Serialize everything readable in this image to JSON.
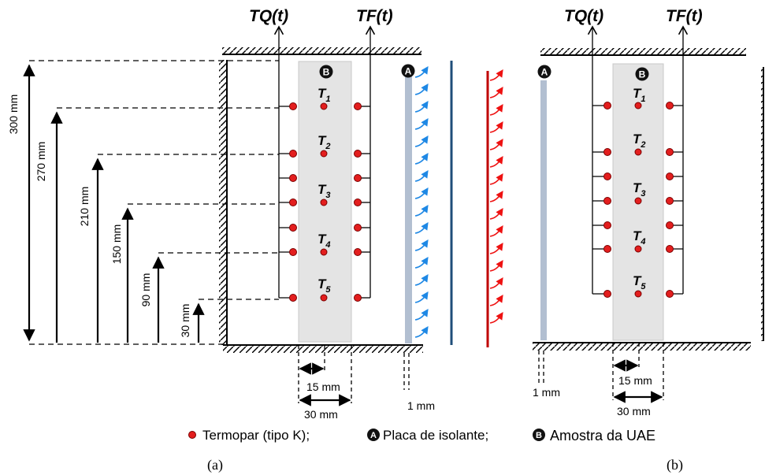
{
  "signals": {
    "tq": "TQ(t)",
    "tf": "TF(t)"
  },
  "markers": {
    "a": "A",
    "b": "B"
  },
  "sensors": [
    "T",
    "T",
    "T",
    "T",
    "T"
  ],
  "sensor_subs": [
    "1",
    "2",
    "3",
    "4",
    "5"
  ],
  "heights": [
    "300 mm",
    "270 mm",
    "210 mm",
    "150 mm",
    "90 mm",
    "30 mm"
  ],
  "widths": {
    "half": "15 mm",
    "full": "30 mm",
    "plate": "1 mm"
  },
  "legend": {
    "thermocouple": "Termopar (tipo K);",
    "plate": "Placa de isolante;",
    "sample": "Amostra da UAE"
  },
  "panels": {
    "a": "(a)",
    "b": "(b)"
  },
  "colors": {
    "dot": "#e31e1e",
    "sample_fill": "#e4e4e4",
    "plate_fill": "#b2bfd1",
    "cold_wall": "#1f4e79",
    "cold_arrow": "#1e88e5",
    "hot_wall": "#c00000",
    "hot_arrow": "#ee1111"
  }
}
